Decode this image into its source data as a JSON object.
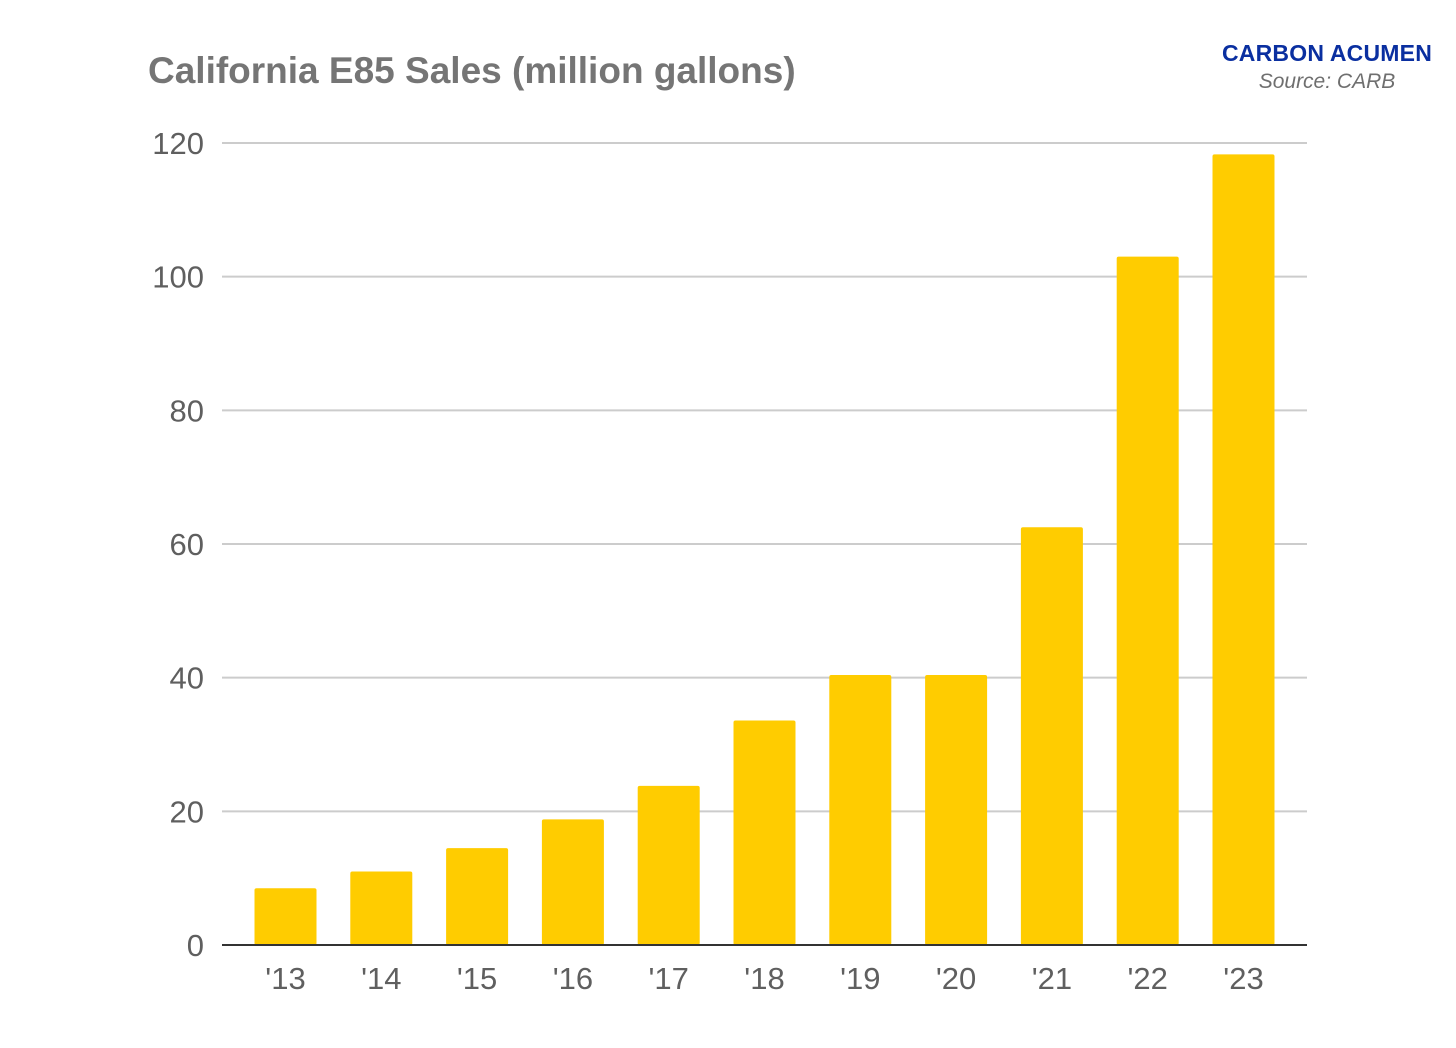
{
  "header": {
    "brand": "CARBON ACUMEN",
    "source": "Source: CARB"
  },
  "colors": {
    "bar": "#FFCC00",
    "grid": "#cccccc",
    "axis": "#333333",
    "brand": "#0a2fa0"
  },
  "chart_data": {
    "type": "bar",
    "title": "California E85 Sales (million gallons)",
    "xlabel": "",
    "ylabel": "",
    "categories": [
      "'13",
      "'14",
      "'15",
      "'16",
      "'17",
      "'18",
      "'19",
      "'20",
      "'21",
      "'22",
      "'23"
    ],
    "values": [
      8.5,
      11,
      14.5,
      18.8,
      23.8,
      33.6,
      40.4,
      40.4,
      62.5,
      103,
      118.3
    ],
    "ylim": [
      0,
      120
    ],
    "yticks": [
      0,
      20,
      40,
      60,
      80,
      100,
      120
    ],
    "grid": true,
    "legend": "none"
  }
}
